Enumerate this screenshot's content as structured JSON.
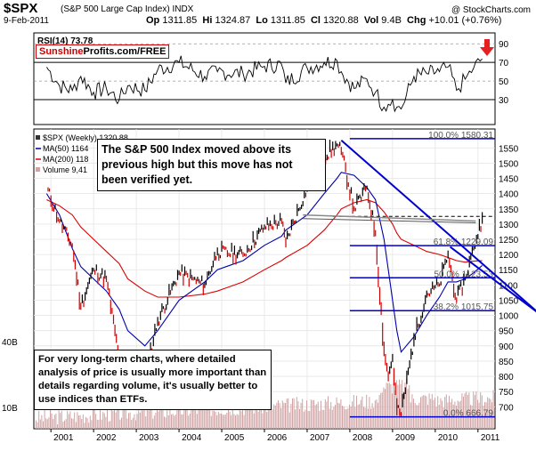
{
  "header": {
    "symbol": "$SPX",
    "name": "(S&P 500 Large Cap Index) INDX",
    "watermark": "@ StockCharts.com",
    "date": "9-Feb-2011",
    "op_label": "Op",
    "op": "1311.85",
    "hi_label": "Hi",
    "hi": "1324.87",
    "lo_label": "Lo",
    "lo": "1311.85",
    "cl_label": "Cl",
    "cl": "1320.88",
    "vol_label": "Vol",
    "vol": "9.4B",
    "chg_label": "Chg",
    "chg": "+10.01 (+0.76%)"
  },
  "brand": {
    "sunshine": "Sunshine",
    "rest": "Profits.com/FREE"
  },
  "rsi_panel": {
    "legend": "RSI(14) 73.78",
    "ticks": [
      90,
      70,
      50,
      30
    ],
    "overbought": 70,
    "oversold": 30
  },
  "price_panel": {
    "legend": {
      "price": "$SPX (Weekly) 1320.88",
      "ma50": "MA(50) 1164",
      "ma200": "MA(200) 118",
      "volume": "Volume 9,41"
    },
    "y_ticks": [
      1550,
      1500,
      1450,
      1400,
      1350,
      1300,
      1250,
      1200,
      1150,
      1100,
      1050,
      1000,
      950,
      900,
      850,
      800,
      750,
      700
    ],
    "x_ticks": [
      "2001",
      "2002",
      "2003",
      "2004",
      "2005",
      "2006",
      "2007",
      "2008",
      "2009",
      "2010",
      "2011"
    ],
    "volume_ticks": [
      "40B",
      "10B"
    ],
    "fib_levels": [
      {
        "label": "100.0% 1580.31",
        "value": 1580.31
      },
      {
        "label": "61.8% 1229.09",
        "value": 1229.09
      },
      {
        "label": "50.0% 1123.53",
        "value": 1123.53
      },
      {
        "label": "38.2% 1015.75",
        "value": 1015.75
      },
      {
        "label": "0.0% 666.79",
        "value": 666.79
      }
    ],
    "previous_high_level": 1325
  },
  "annotations": {
    "note1": "The S&P 500 Index moved above its previous high but this move has not been verified yet.",
    "note2": "For very long-term charts, where detailed analysis of price is usually more important than details regarding volume, it's usually better to use indices than ETFs."
  },
  "colors": {
    "price_up": "#000000",
    "price_down": "#cc0000",
    "ma50": "#0000aa",
    "ma200": "#dd0000",
    "fib_lines": "#0000cc",
    "volume": "#cfa4a4",
    "rsi": "#000000"
  },
  "chart_data": {
    "type": "line",
    "title": "$SPX (S&P 500 Large Cap Index) INDX",
    "xlabel": "",
    "ylabel": "",
    "x": [
      "2000.9",
      "2001.2",
      "2001.5",
      "2001.7",
      "2002.0",
      "2002.3",
      "2002.6",
      "2002.8",
      "2003.2",
      "2003.5",
      "2004.0",
      "2004.6",
      "2004.9",
      "2005.5",
      "2006.0",
      "2006.4",
      "2006.5",
      "2007.0",
      "2007.4",
      "2007.7",
      "2007.8",
      "2008.1",
      "2008.4",
      "2008.6",
      "2008.8",
      "2008.9",
      "2009.0",
      "2009.1",
      "2009.2",
      "2009.5",
      "2009.8",
      "2010.1",
      "2010.3",
      "2010.5",
      "2010.7",
      "2010.9",
      "2011.1"
    ],
    "ylim": [
      650,
      1580
    ],
    "series": [
      {
        "values": [
          1420,
          1310,
          1230,
          1030,
          1150,
          1120,
          860,
          850,
          800,
          980,
          1140,
          1100,
          1210,
          1200,
          1290,
          1310,
          1240,
          1420,
          1520,
          1560,
          1540,
          1350,
          1420,
          1270,
          890,
          800,
          860,
          700,
          676,
          920,
          1070,
          1100,
          1200,
          1050,
          1120,
          1220,
          1320
        ]
      },
      {
        "values": [
          1400,
          1330,
          1220,
          1160,
          1120,
          1080,
          1020,
          950,
          900,
          950,
          1050,
          1110,
          1150,
          1180,
          1230,
          1260,
          1280,
          1330,
          1400,
          1450,
          1470,
          1460,
          1420,
          1380,
          1250,
          1150,
          1050,
          950,
          880,
          930,
          1000,
          1060,
          1110,
          1110,
          1120,
          1140,
          1164
        ]
      },
      {
        "values": [
          1380,
          1360,
          1330,
          1290,
          1250,
          1210,
          1170,
          1120,
          1080,
          1060,
          1060,
          1070,
          1080,
          1110,
          1150,
          1180,
          1190,
          1230,
          1280,
          1330,
          1350,
          1370,
          1380,
          1370,
          1340,
          1320,
          1300,
          1270,
          1250,
          1230,
          1210,
          1200,
          1190,
          1180,
          1175,
          1178,
          1180
        ]
      }
    ],
    "volume_ylim": [
      0,
      40
    ],
    "rsi_ylim": [
      10,
      95
    ],
    "rsi": [
      65,
      45,
      40,
      55,
      38,
      42,
      30,
      45,
      40,
      62,
      70,
      55,
      60,
      58,
      66,
      68,
      48,
      64,
      70,
      72,
      60,
      42,
      52,
      38,
      22,
      25,
      30,
      22,
      20,
      55,
      58,
      60,
      65,
      40,
      52,
      64,
      74
    ]
  }
}
